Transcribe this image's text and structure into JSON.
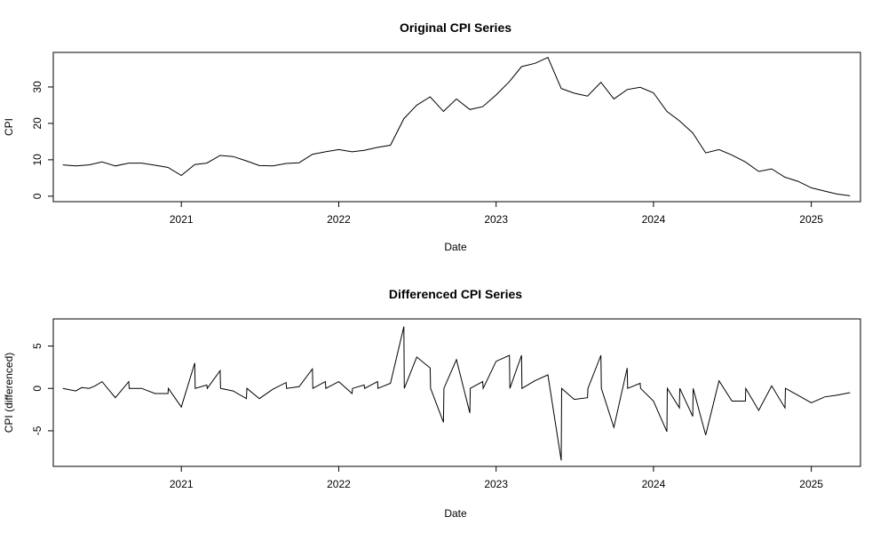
{
  "chart_data": [
    {
      "type": "line",
      "title": "Original CPI Series",
      "xlabel": "Date",
      "ylabel": "CPI",
      "xticks": [
        "2021",
        "2022",
        "2023",
        "2024",
        "2025"
      ],
      "yticks": [
        "0",
        "10",
        "20",
        "30"
      ],
      "xlim": [
        "2020-03-10",
        "2025-04-25"
      ],
      "ylim": [
        -1.5,
        39.5
      ],
      "grid": false,
      "series": [
        {
          "x": [
            "2020-04-01",
            "2020-05-01",
            "2020-06-01",
            "2020-07-01",
            "2020-08-01",
            "2020-09-01",
            "2020-10-01",
            "2020-11-01",
            "2020-12-01",
            "2021-01-01",
            "2021-02-01",
            "2021-03-01",
            "2021-04-01",
            "2021-05-01",
            "2021-06-01",
            "2021-07-01",
            "2021-08-01",
            "2021-09-01",
            "2021-10-01",
            "2021-11-01",
            "2021-12-01",
            "2022-01-01",
            "2022-02-01",
            "2022-03-01",
            "2022-04-01",
            "2022-05-01",
            "2022-06-01",
            "2022-07-01",
            "2022-08-01",
            "2022-09-01",
            "2022-10-01",
            "2022-11-01",
            "2022-12-01",
            "2023-01-01",
            "2023-02-01",
            "2023-03-01",
            "2023-04-01",
            "2023-05-01",
            "2023-06-01",
            "2023-07-01",
            "2023-08-01",
            "2023-09-01",
            "2023-10-01",
            "2023-11-01",
            "2023-12-01",
            "2024-01-01",
            "2024-02-01",
            "2024-03-01",
            "2024-04-01",
            "2024-05-01",
            "2024-06-01",
            "2024-07-01",
            "2024-08-01",
            "2024-09-01",
            "2024-10-01",
            "2024-11-01",
            "2024-12-01",
            "2025-01-01",
            "2025-02-01",
            "2025-03-01",
            "2025-04-01"
          ],
          "values": [
            8.6,
            8.3,
            8.6,
            9.4,
            8.3,
            9.1,
            9.1,
            8.5,
            7.9,
            5.7,
            8.7,
            9.1,
            11.2,
            10.9,
            9.7,
            8.4,
            8.3,
            9.0,
            9.2,
            11.5,
            12.2,
            12.8,
            12.2,
            12.6,
            13.4,
            14.0,
            21.3,
            25.0,
            27.3,
            23.3,
            26.7,
            23.8,
            24.6,
            27.8,
            31.5,
            35.6,
            36.5,
            38.1,
            29.6,
            28.3,
            27.5,
            31.3,
            26.7,
            29.3,
            29.9,
            28.4,
            23.3,
            20.7,
            17.4,
            11.9,
            12.8,
            11.3,
            9.4,
            6.8,
            7.5,
            5.2,
            4.1,
            2.3,
            1.4,
            0.6,
            0.1
          ]
        }
      ]
    },
    {
      "type": "line",
      "title": "Differenced CPI Series",
      "xlabel": "Date",
      "ylabel": "CPI (differenced)",
      "xticks": [
        "2021",
        "2022",
        "2023",
        "2024",
        "2025"
      ],
      "yticks": [
        "-5",
        "0",
        "5"
      ],
      "xlim": [
        "2020-03-10",
        "2025-04-25"
      ],
      "ylim": [
        -9.2,
        8.2
      ],
      "grid": false,
      "series": [
        {
          "x": [
            "2020-04-01",
            "2020-05-01",
            "2020-05-15",
            "2020-06-01",
            "2020-06-15",
            "2020-07-01",
            "2020-08-01",
            "2020-09-01",
            "2020-09-02",
            "2020-10-01",
            "2020-11-01",
            "2020-12-01",
            "2020-12-02",
            "2021-01-01",
            "2021-02-01",
            "2021-02-02",
            "2021-03-01",
            "2021-03-02",
            "2021-04-01",
            "2021-04-02",
            "2021-05-01",
            "2021-06-01",
            "2021-06-02",
            "2021-07-01",
            "2021-08-01",
            "2021-09-01",
            "2021-09-02",
            "2021-10-01",
            "2021-11-01",
            "2021-11-02",
            "2021-12-01",
            "2021-12-02",
            "2022-01-01",
            "2022-02-01",
            "2022-02-02",
            "2022-03-01",
            "2022-03-02",
            "2022-04-01",
            "2022-04-02",
            "2022-05-01",
            "2022-06-01",
            "2022-06-02",
            "2022-07-01",
            "2022-08-01",
            "2022-08-02",
            "2022-09-01",
            "2022-09-02",
            "2022-10-01",
            "2022-11-01",
            "2022-11-02",
            "2022-12-01",
            "2022-12-02",
            "2023-01-01",
            "2023-02-01",
            "2023-02-02",
            "2023-03-01",
            "2023-03-02",
            "2023-04-01",
            "2023-05-01",
            "2023-06-01",
            "2023-06-02",
            "2023-07-01",
            "2023-08-01",
            "2023-08-02",
            "2023-09-01",
            "2023-09-02",
            "2023-10-01",
            "2023-11-01",
            "2023-11-02",
            "2023-12-01",
            "2023-12-02",
            "2024-01-01",
            "2024-02-01",
            "2024-02-02",
            "2024-03-01",
            "2024-03-02",
            "2024-04-01",
            "2024-04-02",
            "2024-05-01",
            "2024-06-01",
            "2024-07-01",
            "2024-08-01",
            "2024-08-02",
            "2024-09-01",
            "2024-10-01",
            "2024-11-01",
            "2024-11-02",
            "2024-12-01",
            "2025-01-01",
            "2025-02-01",
            "2025-03-01",
            "2025-04-01"
          ],
          "values": [
            0.0,
            -0.3,
            0.1,
            0.0,
            0.3,
            0.8,
            -1.1,
            0.8,
            0.0,
            0.0,
            -0.6,
            -0.6,
            0.0,
            -2.2,
            3.0,
            0.0,
            0.4,
            0.0,
            2.1,
            0.0,
            -0.3,
            -1.2,
            0.0,
            -1.2,
            -0.1,
            0.7,
            0.0,
            0.2,
            2.3,
            0.0,
            0.8,
            0.0,
            0.8,
            -0.6,
            0.0,
            0.4,
            0.0,
            0.8,
            0.0,
            0.6,
            7.3,
            0.0,
            3.7,
            2.4,
            0.0,
            -4.0,
            0.0,
            3.4,
            -2.9,
            0.0,
            0.8,
            0.0,
            3.2,
            3.9,
            0.0,
            3.9,
            0.0,
            0.9,
            1.6,
            -8.5,
            0.0,
            -1.3,
            -1.1,
            0.0,
            3.9,
            0.0,
            -4.6,
            2.4,
            0.0,
            0.6,
            0.0,
            -1.5,
            -5.1,
            0.0,
            -2.3,
            0.0,
            -3.3,
            0.0,
            -5.5,
            0.9,
            -1.5,
            -1.5,
            0.0,
            -2.6,
            0.3,
            -2.3,
            0.0,
            -0.8,
            -1.7,
            -1.0,
            -0.8,
            -0.5
          ]
        }
      ]
    }
  ]
}
